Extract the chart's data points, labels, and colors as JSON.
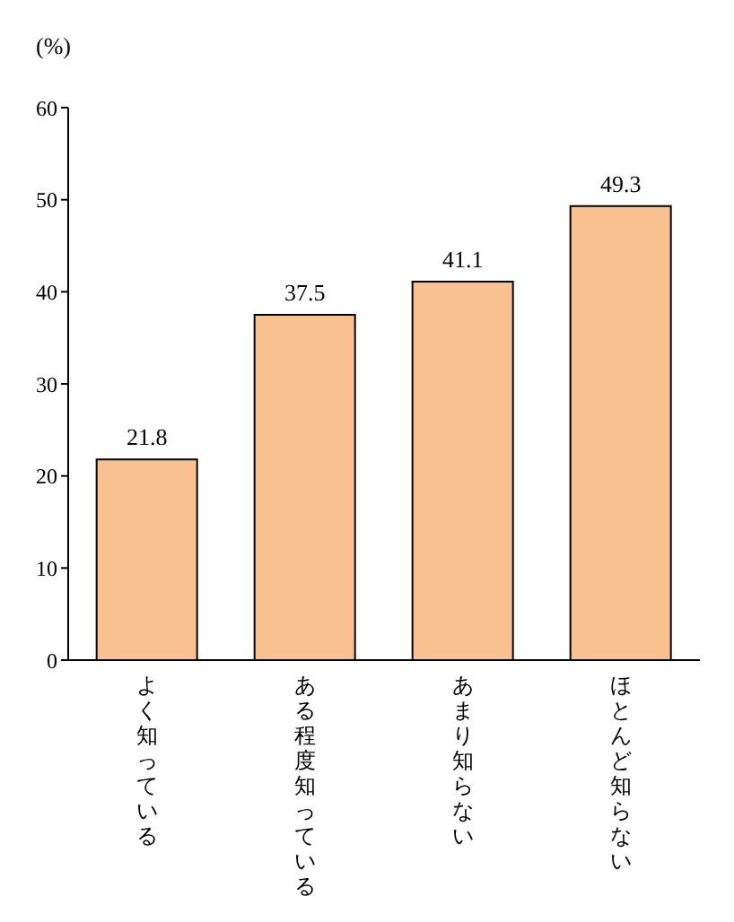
{
  "chart_data": {
    "type": "bar",
    "ylabel": "(%)",
    "categories": [
      "よく知っている",
      "ある程度知っている",
      "あまり知らない",
      "ほとんど知らない"
    ],
    "values": [
      21.8,
      37.5,
      41.1,
      49.3
    ],
    "color": "#f9c090",
    "ylim": [
      0,
      60
    ],
    "yticks": [
      0,
      10,
      20,
      30,
      40,
      50,
      60
    ],
    "grid": false,
    "data_labels": true
  }
}
